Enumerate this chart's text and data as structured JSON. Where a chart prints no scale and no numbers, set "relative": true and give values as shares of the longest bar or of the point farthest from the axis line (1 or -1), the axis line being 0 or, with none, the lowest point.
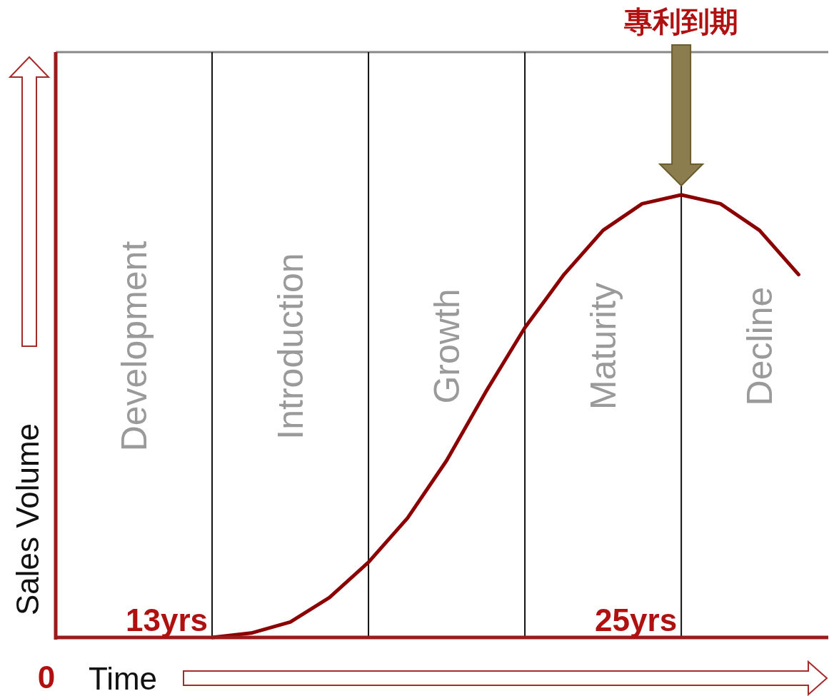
{
  "chart_data": {
    "type": "line",
    "relative": true,
    "xlabel": "Time",
    "ylabel": "Sales Volume",
    "categories": [
      null,
      null,
      null,
      null,
      null,
      null,
      null,
      null,
      null,
      null,
      null,
      null,
      null,
      null,
      null,
      null,
      null,
      null,
      null,
      null
    ],
    "grid": "x",
    "series": [
      {
        "color": "#8b0000",
        "values": [
          null,
          null,
          null,
          null,
          0,
          0.01,
          0.035,
          0.09,
          0.17,
          0.27,
          0.4,
          0.555,
          0.7,
          0.82,
          0.92,
          0.98,
          1,
          0.98,
          0.92,
          0.82
        ]
      }
    ],
    "annotations": [
      "Development",
      "Introduction",
      "Growth",
      "Maturity",
      "Decline",
      "專利到期",
      "13yrs",
      "25yrs",
      "0"
    ]
  }
}
